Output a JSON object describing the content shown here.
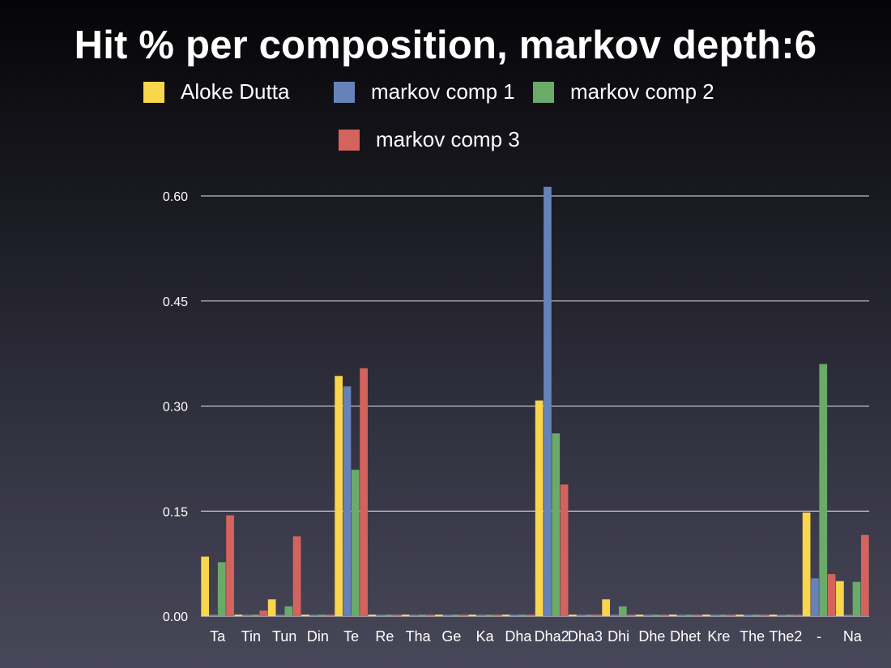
{
  "title": "Hit % per composition, markov depth:6",
  "legend": [
    {
      "label": "Aloke Dutta",
      "color": "#f9d64c"
    },
    {
      "label": "markov comp 1",
      "color": "#6682b8"
    },
    {
      "label": "markov comp 2",
      "color": "#6aab6a"
    },
    {
      "label": "markov comp 3",
      "color": "#d4635e"
    }
  ],
  "chart_data": {
    "type": "bar",
    "title": "Hit % per composition, markov depth:6",
    "xlabel": "",
    "ylabel": "",
    "ylim": [
      0,
      0.6
    ],
    "yticks": [
      "0.00",
      "0.15",
      "0.30",
      "0.45",
      "0.60"
    ],
    "grid": true,
    "legend_position": "top",
    "categories": [
      "Ta",
      "Tin",
      "Tun",
      "Din",
      "Te",
      "Re",
      "Tha",
      "Ge",
      "Ka",
      "Dha",
      "Dha2",
      "Dha3",
      "Dhi",
      "Dhe",
      "Dhet",
      "Kre",
      "The",
      "The2",
      "-",
      "Na"
    ],
    "series": [
      {
        "name": "Aloke Dutta",
        "color": "#f9d64c",
        "values": [
          0.085,
          0.0,
          0.024,
          0.0,
          0.343,
          0.0,
          0.0,
          0.0,
          0.0,
          0.0,
          0.308,
          0.0,
          0.024,
          0.0,
          0.0,
          0.0,
          0.0,
          0.0,
          0.148,
          0.05
        ]
      },
      {
        "name": "markov comp 1",
        "color": "#6682b8",
        "values": [
          0.0,
          0.0,
          0.0,
          0.0,
          0.328,
          0.0,
          0.0,
          0.0,
          0.0,
          0.0,
          0.613,
          0.0,
          0.0,
          0.0,
          0.0,
          0.0,
          0.0,
          0.0,
          0.054,
          0.0
        ]
      },
      {
        "name": "markov comp 2",
        "color": "#6aab6a",
        "values": [
          0.077,
          0.0,
          0.014,
          0.0,
          0.209,
          0.0,
          0.0,
          0.0,
          0.0,
          0.0,
          0.261,
          0.0,
          0.014,
          0.0,
          0.0,
          0.0,
          0.0,
          0.0,
          0.36,
          0.049
        ]
      },
      {
        "name": "markov comp 3",
        "color": "#d4635e",
        "values": [
          0.144,
          0.008,
          0.114,
          0.0,
          0.354,
          0.0,
          0.0,
          0.0,
          0.0,
          0.0,
          0.188,
          0.0,
          0.0,
          0.0,
          0.0,
          0.0,
          0.0,
          0.0,
          0.06,
          0.116
        ]
      }
    ]
  }
}
